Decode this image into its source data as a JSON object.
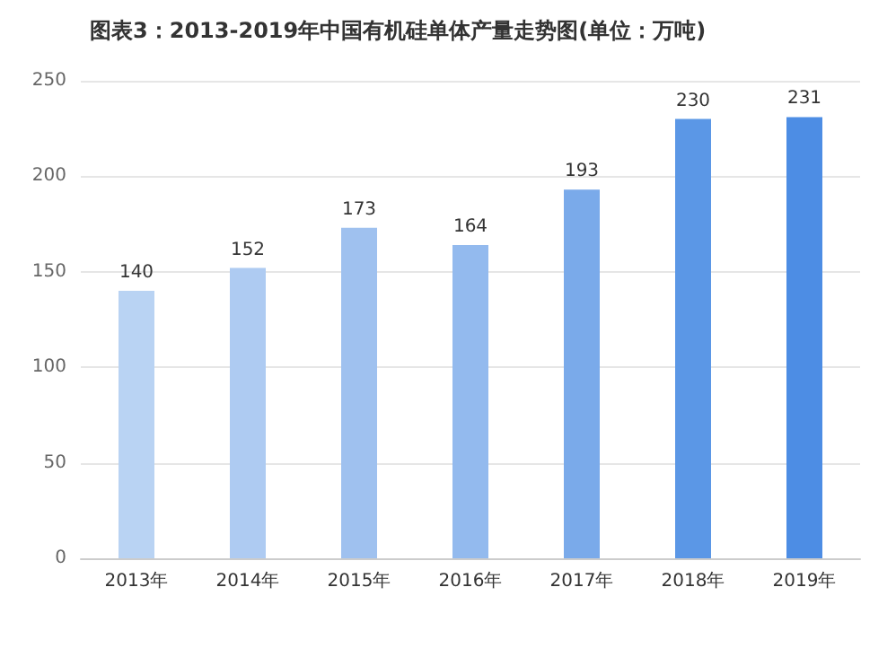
{
  "chart_data": {
    "type": "bar",
    "title": "图表3：2013-2019年中国有机硅单体产量走势图(单位：万吨)",
    "categories": [
      "2013年",
      "2014年",
      "2015年",
      "2016年",
      "2017年",
      "2018年",
      "2019年"
    ],
    "values": [
      140,
      152,
      173,
      164,
      193,
      230,
      231
    ],
    "colors": [
      "#b9d3f3",
      "#aecbf2",
      "#9fc1ef",
      "#93baee",
      "#7aaaea",
      "#5b97e6",
      "#4d8de4"
    ],
    "ylim": [
      0,
      250
    ],
    "yticks": [
      0,
      50,
      100,
      150,
      200,
      250
    ],
    "grid": "y",
    "data_labels": true
  }
}
